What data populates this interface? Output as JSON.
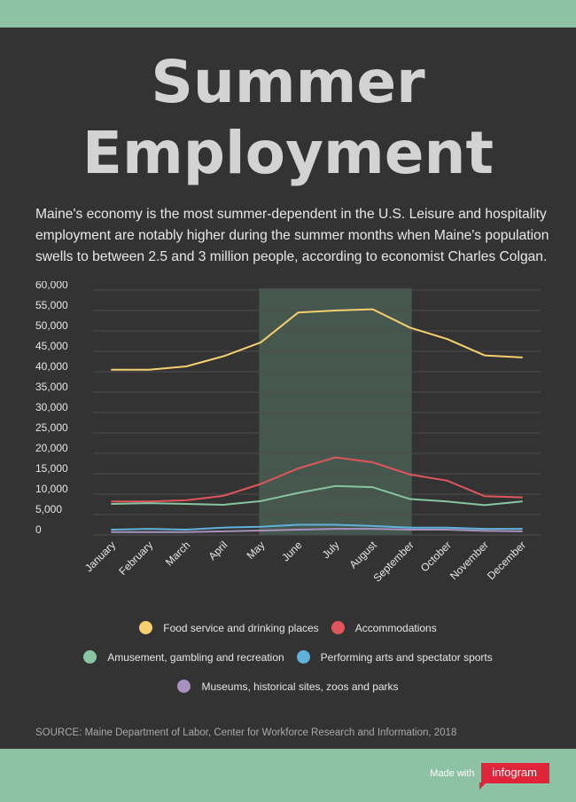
{
  "title_line1": "Summer",
  "title_line2": "Employment",
  "intro": "Maine's economy is the most summer-dependent in the U.S. Leisure and hospitality employment are notably higher during the summer months when Maine's population swells to between 2.5 and 3 million people, according to economist Charles Colgan.",
  "source": "SOURCE: Maine Department of Labor, Center for Workforce Research and Information, 2018",
  "footer": {
    "made_with": "Made with",
    "brand": "infogram"
  },
  "chart_data": {
    "type": "line",
    "ylim": [
      0,
      60000
    ],
    "yticks": [
      0,
      5000,
      10000,
      15000,
      20000,
      25000,
      30000,
      35000,
      40000,
      45000,
      50000,
      55000,
      60000
    ],
    "ytick_labels": [
      "0",
      "5,000",
      "10,000",
      "15,000",
      "20,000",
      "25,000",
      "30,000",
      "35,000",
      "40,000",
      "45,000",
      "50,000",
      "55,000",
      "60,000"
    ],
    "categories": [
      "January",
      "February",
      "March",
      "April",
      "May",
      "June",
      "July",
      "August",
      "September",
      "October",
      "November",
      "December"
    ],
    "highlight_range": [
      "May",
      "September"
    ],
    "highlight_color": "#46574e",
    "grid": true,
    "legend_position": "bottom",
    "series": [
      {
        "name": "Food service and drinking places",
        "color": "#f5d06e",
        "values": [
          40500,
          40500,
          41300,
          43800,
          47200,
          54500,
          55000,
          55300,
          50800,
          48000,
          44000,
          43500
        ]
      },
      {
        "name": "Accommodations",
        "color": "#e0565b",
        "values": [
          8200,
          8200,
          8500,
          9600,
          12500,
          16300,
          19000,
          17800,
          14800,
          13300,
          9500,
          9200
        ]
      },
      {
        "name": "Amusement, gambling and recreation",
        "color": "#86c59f",
        "values": [
          7600,
          7800,
          7600,
          7400,
          8300,
          10300,
          12000,
          11700,
          8800,
          8200,
          7300,
          8200
        ]
      },
      {
        "name": "Performing arts and spectator sports",
        "color": "#5fb2dc",
        "values": [
          1300,
          1500,
          1300,
          1800,
          2000,
          2500,
          2500,
          2200,
          1800,
          1800,
          1500,
          1500
        ]
      },
      {
        "name": "Museums, historical sites, zoos and parks",
        "color": "#a891c0",
        "values": [
          700,
          700,
          700,
          900,
          1100,
          1300,
          1500,
          1500,
          1300,
          1300,
          1000,
          900
        ]
      }
    ]
  }
}
